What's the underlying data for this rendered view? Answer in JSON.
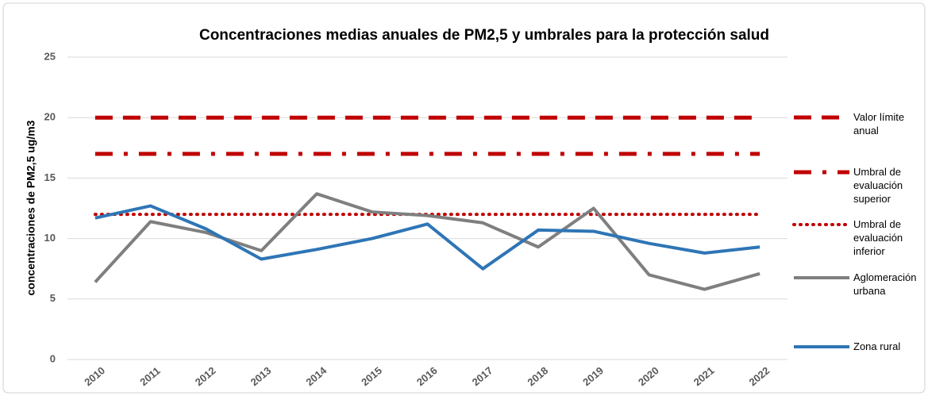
{
  "chart_data": {
    "type": "line",
    "title": "Concentraciones medias anuales de PM2,5 y umbrales para la protección salud",
    "y_label": "concentraciones de PM2,5 ug/m3",
    "categories": [
      "2010",
      "2011",
      "2012",
      "2013",
      "2014",
      "2015",
      "2016",
      "2017",
      "2018",
      "2019",
      "2020",
      "2021",
      "2022"
    ],
    "ylim": [
      0,
      25
    ],
    "yticks": [
      0,
      5,
      10,
      15,
      20,
      25
    ],
    "grid": true,
    "legend": "right",
    "series": [
      {
        "name": "Valor límite anual",
        "color": "#c00000",
        "style": "dash",
        "values": [
          20,
          20,
          20,
          20,
          20,
          20,
          20,
          20,
          20,
          20,
          20,
          20,
          20
        ]
      },
      {
        "name": "Umbral de evaluación superior",
        "color": "#c00000",
        "style": "dashdot",
        "values": [
          17,
          17,
          17,
          17,
          17,
          17,
          17,
          17,
          17,
          17,
          17,
          17,
          17
        ]
      },
      {
        "name": "Umbral de evaluación inferior",
        "color": "#c00000",
        "style": "dot",
        "values": [
          12,
          12,
          12,
          12,
          12,
          12,
          12,
          12,
          12,
          12,
          12,
          12,
          12
        ]
      },
      {
        "name": "Aglomeración urbana",
        "color": "#7f7f7f",
        "style": "solid",
        "values": [
          6.4,
          11.4,
          10.5,
          9.0,
          13.7,
          12.2,
          11.9,
          11.3,
          9.3,
          12.5,
          7.0,
          5.8,
          7.1
        ]
      },
      {
        "name": "Zona rural",
        "color": "#2e75b6",
        "style": "solid",
        "values": [
          11.7,
          12.7,
          10.8,
          8.3,
          9.1,
          10.0,
          11.2,
          7.5,
          10.7,
          10.6,
          9.6,
          8.8,
          9.3
        ]
      }
    ]
  }
}
